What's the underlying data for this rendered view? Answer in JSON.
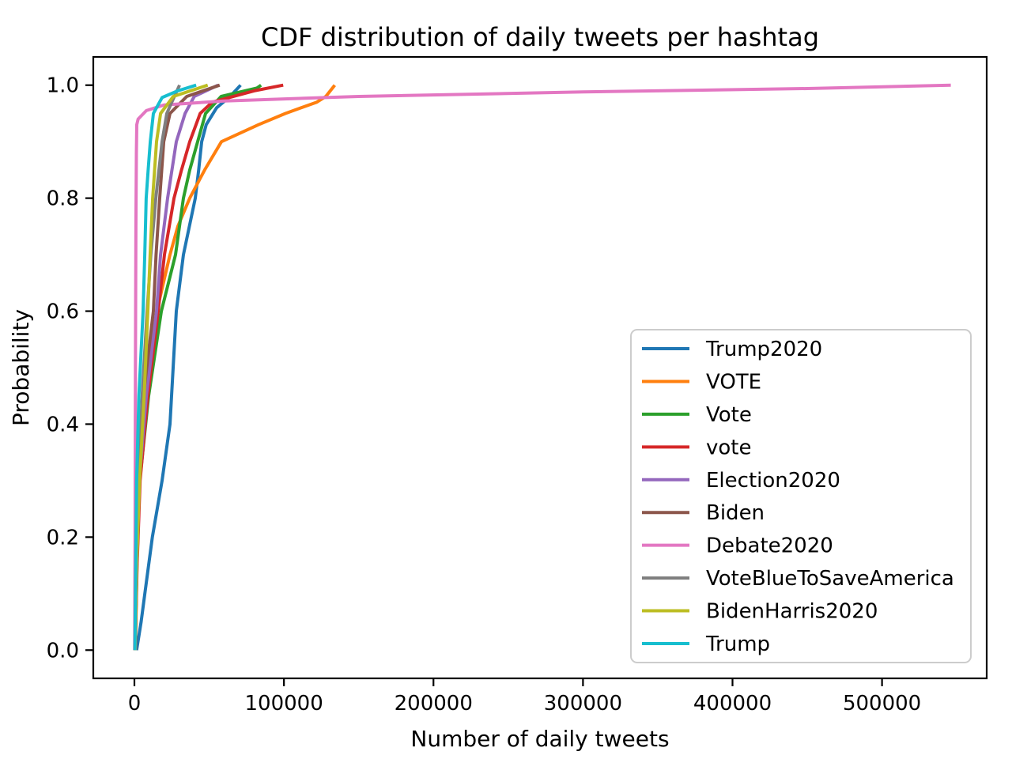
{
  "chart_data": {
    "type": "line",
    "subtype": "empirical-cdf",
    "title": "CDF distribution of daily tweets per hashtag",
    "xlabel": "Number of daily tweets",
    "ylabel": "Probability",
    "grid": false,
    "legend_position": "lower right inside",
    "x_range": [
      -27500,
      570000
    ],
    "y_range": [
      -0.05,
      1.05
    ],
    "x_ticks": [
      {
        "value": 0,
        "label": "0"
      },
      {
        "value": 100000,
        "label": "100000"
      },
      {
        "value": 200000,
        "label": "200000"
      },
      {
        "value": 300000,
        "label": "300000"
      },
      {
        "value": 400000,
        "label": "400000"
      },
      {
        "value": 500000,
        "label": "500000"
      }
    ],
    "y_ticks": [
      {
        "value": 0.0,
        "label": "0.0"
      },
      {
        "value": 0.2,
        "label": "0.2"
      },
      {
        "value": 0.4,
        "label": "0.4"
      },
      {
        "value": 0.6,
        "label": "0.6"
      },
      {
        "value": 0.8,
        "label": "0.8"
      },
      {
        "value": 1.0,
        "label": "1.0"
      }
    ],
    "series": [
      {
        "name": "Trump2020",
        "color": "#1f77b4",
        "points": [
          [
            1500,
            0
          ],
          [
            4500,
            0.05
          ],
          [
            7000,
            0.1
          ],
          [
            12000,
            0.2
          ],
          [
            18500,
            0.3
          ],
          [
            23800,
            0.4
          ],
          [
            25900,
            0.5
          ],
          [
            28000,
            0.6
          ],
          [
            32800,
            0.7
          ],
          [
            40700,
            0.8
          ],
          [
            43000,
            0.85
          ],
          [
            45000,
            0.9
          ],
          [
            48000,
            0.93
          ],
          [
            55000,
            0.96
          ],
          [
            64000,
            0.98
          ],
          [
            71000,
            1.0
          ]
        ]
      },
      {
        "name": "VOTE",
        "color": "#ff7f0e",
        "points": [
          [
            300,
            0
          ],
          [
            1200,
            0.15
          ],
          [
            2600,
            0.3
          ],
          [
            6000,
            0.45
          ],
          [
            15000,
            0.6
          ],
          [
            23800,
            0.7
          ],
          [
            29000,
            0.75
          ],
          [
            37000,
            0.8
          ],
          [
            47000,
            0.85
          ],
          [
            58200,
            0.9
          ],
          [
            83000,
            0.93
          ],
          [
            101000,
            0.95
          ],
          [
            122000,
            0.97
          ],
          [
            128000,
            0.98
          ],
          [
            134000,
            1.0
          ]
        ]
      },
      {
        "name": "Vote",
        "color": "#2ca02c",
        "points": [
          [
            500,
            0
          ],
          [
            1700,
            0.15
          ],
          [
            3600,
            0.3
          ],
          [
            9500,
            0.45
          ],
          [
            18000,
            0.6
          ],
          [
            27500,
            0.7
          ],
          [
            32800,
            0.8
          ],
          [
            37000,
            0.85
          ],
          [
            42300,
            0.9
          ],
          [
            47600,
            0.95
          ],
          [
            58000,
            0.98
          ],
          [
            82000,
            0.995
          ],
          [
            84700,
            1.0
          ]
        ]
      },
      {
        "name": "vote",
        "color": "#d62728",
        "points": [
          [
            600,
            0
          ],
          [
            1800,
            0.15
          ],
          [
            3800,
            0.3
          ],
          [
            9000,
            0.45
          ],
          [
            15900,
            0.6
          ],
          [
            20100,
            0.7
          ],
          [
            26500,
            0.8
          ],
          [
            31500,
            0.85
          ],
          [
            37000,
            0.9
          ],
          [
            44000,
            0.95
          ],
          [
            52000,
            0.97
          ],
          [
            80000,
            0.99
          ],
          [
            99500,
            1.0
          ]
        ]
      },
      {
        "name": "Election2020",
        "color": "#9467bd",
        "points": [
          [
            500,
            0
          ],
          [
            1600,
            0.15
          ],
          [
            3200,
            0.3
          ],
          [
            8000,
            0.45
          ],
          [
            14800,
            0.6
          ],
          [
            17500,
            0.7
          ],
          [
            22200,
            0.8
          ],
          [
            28000,
            0.9
          ],
          [
            33900,
            0.95
          ],
          [
            40000,
            0.98
          ],
          [
            56000,
            1.0
          ]
        ]
      },
      {
        "name": "Biden",
        "color": "#8c564b",
        "points": [
          [
            700,
            0
          ],
          [
            1400,
            0.15
          ],
          [
            2100,
            0.3
          ],
          [
            6000,
            0.45
          ],
          [
            12700,
            0.6
          ],
          [
            14500,
            0.7
          ],
          [
            16900,
            0.8
          ],
          [
            19600,
            0.9
          ],
          [
            23800,
            0.95
          ],
          [
            35000,
            0.98
          ],
          [
            57000,
            1.0
          ]
        ]
      },
      {
        "name": "Debate2020",
        "color": "#e377c2",
        "points": [
          [
            100,
            0
          ],
          [
            400,
            0.2
          ],
          [
            700,
            0.5
          ],
          [
            1000,
            0.75
          ],
          [
            1300,
            0.88
          ],
          [
            1600,
            0.93
          ],
          [
            2500,
            0.94
          ],
          [
            8000,
            0.955
          ],
          [
            20000,
            0.965
          ],
          [
            60000,
            0.972
          ],
          [
            150000,
            0.98
          ],
          [
            300000,
            0.988
          ],
          [
            450000,
            0.994
          ],
          [
            546000,
            1.0
          ]
        ]
      },
      {
        "name": "VoteBlueToSaveAmerica",
        "color": "#7f7f7f",
        "points": [
          [
            400,
            0
          ],
          [
            1200,
            0.15
          ],
          [
            2800,
            0.3
          ],
          [
            5200,
            0.45
          ],
          [
            8500,
            0.6
          ],
          [
            11000,
            0.7
          ],
          [
            14300,
            0.8
          ],
          [
            18500,
            0.9
          ],
          [
            21700,
            0.95
          ],
          [
            25000,
            0.97
          ],
          [
            30200,
            1.0
          ]
        ]
      },
      {
        "name": "BidenHarris2020",
        "color": "#bcbd22",
        "points": [
          [
            400,
            0
          ],
          [
            1500,
            0.15
          ],
          [
            3500,
            0.3
          ],
          [
            6500,
            0.45
          ],
          [
            9000,
            0.6
          ],
          [
            10500,
            0.7
          ],
          [
            12200,
            0.8
          ],
          [
            14800,
            0.9
          ],
          [
            17500,
            0.95
          ],
          [
            26000,
            0.98
          ],
          [
            49000,
            1.0
          ]
        ]
      },
      {
        "name": "Trump",
        "color": "#17becf",
        "points": [
          [
            300,
            0
          ],
          [
            900,
            0.15
          ],
          [
            1500,
            0.3
          ],
          [
            3000,
            0.45
          ],
          [
            5800,
            0.6
          ],
          [
            6900,
            0.7
          ],
          [
            7900,
            0.8
          ],
          [
            9200,
            0.85
          ],
          [
            10600,
            0.9
          ],
          [
            12700,
            0.95
          ],
          [
            18500,
            0.978
          ],
          [
            29000,
            0.99
          ],
          [
            41300,
            1.0
          ]
        ]
      }
    ]
  }
}
